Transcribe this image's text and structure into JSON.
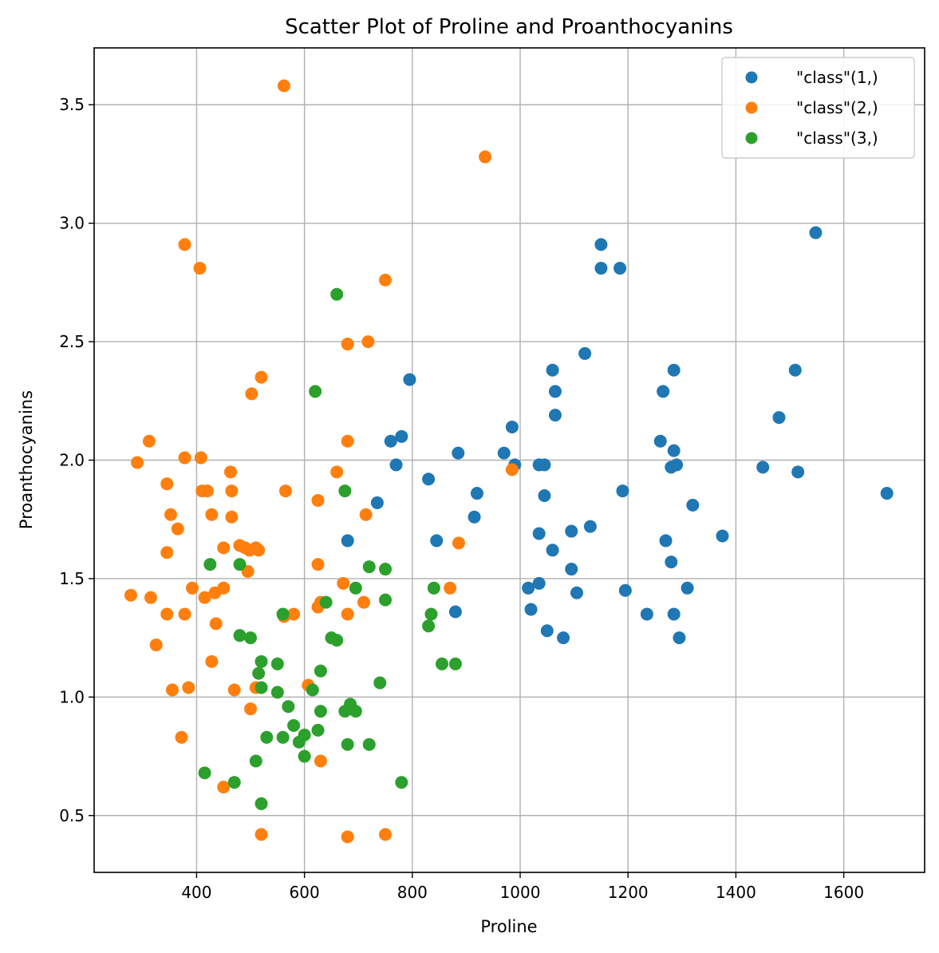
{
  "colors": {
    "class1": "#1f77b4",
    "class2": "#ff7f0e",
    "class3": "#2ca02c",
    "grid": "#b0b0b0"
  },
  "chart_data": {
    "type": "scatter",
    "title": "Scatter Plot of Proline and Proanthocyanins",
    "xlabel": "Proline",
    "ylabel": "Proanthocyanins",
    "xlim": [
      210,
      1750
    ],
    "ylim": [
      0.26,
      3.74
    ],
    "x_ticks": [
      400,
      600,
      800,
      1000,
      1200,
      1400,
      1600
    ],
    "y_ticks": [
      0.5,
      1.0,
      1.5,
      2.0,
      2.5,
      3.0,
      3.5
    ],
    "x_tick_labels": [
      "400",
      "600",
      "800",
      "1000",
      "1200",
      "1400",
      "1600"
    ],
    "y_tick_labels": [
      "0.5",
      "1.0",
      "1.5",
      "2.0",
      "2.5",
      "3.0",
      "3.5"
    ],
    "grid": true,
    "legend_position": "top-right",
    "series": [
      {
        "name": "\"class\"(1,)",
        "color": "#1f77b4",
        "points": [
          [
            1548,
            2.96
          ],
          [
            1150,
            2.91
          ],
          [
            1150,
            2.81
          ],
          [
            1185,
            2.81
          ],
          [
            1120,
            2.45
          ],
          [
            1510,
            2.38
          ],
          [
            1285,
            2.38
          ],
          [
            1060,
            2.38
          ],
          [
            795,
            2.34
          ],
          [
            1065,
            2.29
          ],
          [
            1265,
            2.29
          ],
          [
            1480,
            2.18
          ],
          [
            1065,
            2.19
          ],
          [
            985,
            2.14
          ],
          [
            780,
            2.1
          ],
          [
            760,
            2.08
          ],
          [
            1260,
            2.08
          ],
          [
            885,
            2.03
          ],
          [
            970,
            2.03
          ],
          [
            1285,
            2.04
          ],
          [
            770,
            1.98
          ],
          [
            990,
            1.98
          ],
          [
            1035,
            1.98
          ],
          [
            1045,
            1.98
          ],
          [
            1280,
            1.97
          ],
          [
            1290,
            1.98
          ],
          [
            1450,
            1.97
          ],
          [
            1515,
            1.95
          ],
          [
            830,
            1.92
          ],
          [
            1190,
            1.87
          ],
          [
            920,
            1.86
          ],
          [
            1680,
            1.86
          ],
          [
            1045,
            1.85
          ],
          [
            735,
            1.82
          ],
          [
            1320,
            1.81
          ],
          [
            915,
            1.76
          ],
          [
            1130,
            1.72
          ],
          [
            1095,
            1.7
          ],
          [
            1035,
            1.69
          ],
          [
            1375,
            1.68
          ],
          [
            845,
            1.66
          ],
          [
            680,
            1.66
          ],
          [
            1270,
            1.66
          ],
          [
            1060,
            1.62
          ],
          [
            1280,
            1.57
          ],
          [
            1095,
            1.54
          ],
          [
            1035,
            1.48
          ],
          [
            1015,
            1.46
          ],
          [
            1310,
            1.46
          ],
          [
            1105,
            1.44
          ],
          [
            1195,
            1.45
          ],
          [
            1020,
            1.37
          ],
          [
            880,
            1.36
          ],
          [
            1235,
            1.35
          ],
          [
            1285,
            1.35
          ],
          [
            1050,
            1.28
          ],
          [
            1080,
            1.25
          ],
          [
            1295,
            1.25
          ]
        ]
      },
      {
        "name": "\"class\"(2,)",
        "color": "#ff7f0e",
        "points": [
          [
            562,
            3.58
          ],
          [
            935,
            3.28
          ],
          [
            378,
            2.91
          ],
          [
            406,
            2.81
          ],
          [
            750,
            2.76
          ],
          [
            680,
            2.49
          ],
          [
            718,
            2.5
          ],
          [
            520,
            2.35
          ],
          [
            502,
            2.28
          ],
          [
            312,
            2.08
          ],
          [
            680,
            2.08
          ],
          [
            290,
            1.99
          ],
          [
            378,
            2.01
          ],
          [
            408,
            2.01
          ],
          [
            463,
            1.95
          ],
          [
            660,
            1.95
          ],
          [
            985,
            1.96
          ],
          [
            345,
            1.9
          ],
          [
            410,
            1.87
          ],
          [
            420,
            1.87
          ],
          [
            465,
            1.87
          ],
          [
            565,
            1.87
          ],
          [
            625,
            1.83
          ],
          [
            352,
            1.77
          ],
          [
            428,
            1.77
          ],
          [
            465,
            1.76
          ],
          [
            714,
            1.77
          ],
          [
            365,
            1.71
          ],
          [
            886,
            1.65
          ],
          [
            345,
            1.61
          ],
          [
            450,
            1.63
          ],
          [
            480,
            1.64
          ],
          [
            490,
            1.63
          ],
          [
            498,
            1.62
          ],
          [
            510,
            1.63
          ],
          [
            515,
            1.62
          ],
          [
            495,
            1.53
          ],
          [
            625,
            1.56
          ],
          [
            672,
            1.48
          ],
          [
            870,
            1.46
          ],
          [
            392,
            1.46
          ],
          [
            450,
            1.46
          ],
          [
            278,
            1.43
          ],
          [
            315,
            1.42
          ],
          [
            415,
            1.42
          ],
          [
            434,
            1.44
          ],
          [
            710,
            1.4
          ],
          [
            625,
            1.38
          ],
          [
            630,
            1.4
          ],
          [
            345,
            1.35
          ],
          [
            378,
            1.35
          ],
          [
            562,
            1.34
          ],
          [
            580,
            1.35
          ],
          [
            680,
            1.35
          ],
          [
            436,
            1.31
          ],
          [
            325,
            1.22
          ],
          [
            428,
            1.15
          ],
          [
            385,
            1.04
          ],
          [
            355,
            1.03
          ],
          [
            470,
            1.03
          ],
          [
            510,
            1.04
          ],
          [
            607,
            1.05
          ],
          [
            500,
            0.95
          ],
          [
            372,
            0.83
          ],
          [
            630,
            0.73
          ],
          [
            450,
            0.62
          ],
          [
            520,
            0.42
          ],
          [
            750,
            0.42
          ],
          [
            680,
            0.41
          ]
        ]
      },
      {
        "name": "\"class\"(3,)",
        "color": "#2ca02c",
        "points": [
          [
            660,
            2.7
          ],
          [
            620,
            2.29
          ],
          [
            675,
            1.87
          ],
          [
            425,
            1.56
          ],
          [
            480,
            1.56
          ],
          [
            720,
            1.55
          ],
          [
            750,
            1.54
          ],
          [
            840,
            1.46
          ],
          [
            695,
            1.46
          ],
          [
            750,
            1.41
          ],
          [
            640,
            1.4
          ],
          [
            560,
            1.35
          ],
          [
            835,
            1.35
          ],
          [
            830,
            1.3
          ],
          [
            480,
            1.26
          ],
          [
            500,
            1.25
          ],
          [
            650,
            1.25
          ],
          [
            660,
            1.24
          ],
          [
            550,
            1.14
          ],
          [
            855,
            1.14
          ],
          [
            880,
            1.14
          ],
          [
            520,
            1.15
          ],
          [
            630,
            1.11
          ],
          [
            515,
            1.1
          ],
          [
            740,
            1.06
          ],
          [
            520,
            1.04
          ],
          [
            550,
            1.02
          ],
          [
            615,
            1.03
          ],
          [
            685,
            0.97
          ],
          [
            570,
            0.96
          ],
          [
            675,
            0.94
          ],
          [
            695,
            0.94
          ],
          [
            630,
            0.94
          ],
          [
            685,
            0.95
          ],
          [
            580,
            0.88
          ],
          [
            625,
            0.86
          ],
          [
            530,
            0.83
          ],
          [
            560,
            0.83
          ],
          [
            600,
            0.84
          ],
          [
            590,
            0.81
          ],
          [
            680,
            0.8
          ],
          [
            720,
            0.8
          ],
          [
            600,
            0.75
          ],
          [
            510,
            0.73
          ],
          [
            415,
            0.68
          ],
          [
            470,
            0.64
          ],
          [
            780,
            0.64
          ],
          [
            520,
            0.55
          ]
        ]
      }
    ]
  }
}
